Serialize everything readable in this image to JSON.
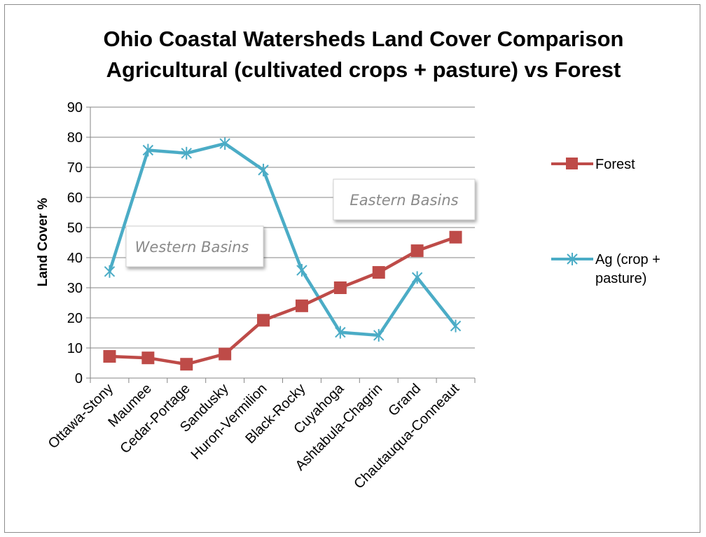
{
  "chart_data": {
    "type": "line",
    "title": [
      "Ohio Coastal Watersheds Land Cover Comparison",
      "Agricultural (cultivated crops + pasture) vs Forest"
    ],
    "xlabel": "",
    "ylabel": "Land Cover %",
    "ylim": [
      0,
      90
    ],
    "yticks": [
      0,
      10,
      20,
      30,
      40,
      50,
      60,
      70,
      80,
      90
    ],
    "grid": "horizontal",
    "legend_position": "right",
    "categories": [
      "Ottawa-Stony",
      "Maumee",
      "Cedar-Portage",
      "Sandusky",
      "Huron-Vermilion",
      "Black-Rocky",
      "Cuyahoga",
      "Ashtabula-Chagrin",
      "Grand",
      "Chautauqua-Conneaut"
    ],
    "series": [
      {
        "name": "Forest",
        "color": "#be4b48",
        "marker": "square",
        "values": [
          7.2,
          6.7,
          4.6,
          8.0,
          19.2,
          24.0,
          30.0,
          35.1,
          42.3,
          46.8
        ]
      },
      {
        "name": "Ag (crop + pasture)",
        "legend_lines": [
          "Ag (crop +",
          "pasture)"
        ],
        "color": "#4bacc6",
        "marker": "star",
        "values": [
          35.4,
          75.7,
          74.7,
          77.9,
          69.1,
          35.8,
          15.2,
          14.2,
          33.4,
          17.3
        ]
      }
    ],
    "annotations": [
      {
        "text": "Western Basins"
      },
      {
        "text": "Eastern Basins"
      }
    ]
  }
}
